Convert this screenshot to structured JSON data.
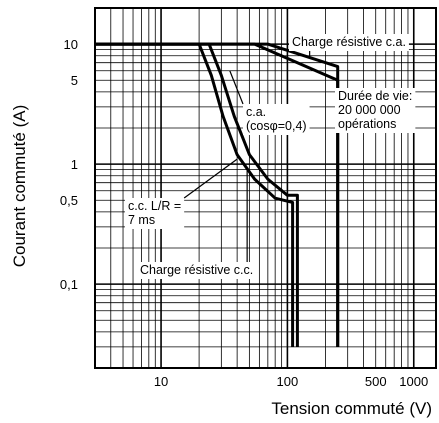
{
  "chart_data": {
    "type": "line",
    "title": "",
    "xlabel": "Tension commuté (V)",
    "ylabel": "Courant commuté (A)",
    "x_scale": "log",
    "y_scale": "log",
    "xlim": [
      3,
      1500
    ],
    "ylim": [
      0.02,
      20
    ],
    "grid": true,
    "x_ticks": [
      {
        "value": 10,
        "label": "10"
      },
      {
        "value": 100,
        "label": "100"
      },
      {
        "value": 500,
        "label": "500"
      },
      {
        "value": 1000,
        "label": "1000"
      }
    ],
    "y_ticks": [
      {
        "value": 10,
        "label": "10"
      },
      {
        "value": 5,
        "label": "5"
      },
      {
        "value": 1,
        "label": "1"
      },
      {
        "value": 0.5,
        "label": "0,5"
      },
      {
        "value": 0.1,
        "label": "0,1"
      }
    ],
    "series": [
      {
        "name": "Charge résistive c.a.",
        "points": [
          [
            3,
            10
          ],
          [
            70,
            10
          ],
          [
            250,
            6.5
          ],
          [
            250,
            0.03
          ]
        ]
      },
      {
        "name": "c.a. (cosφ=0,4)",
        "points": [
          [
            3,
            10
          ],
          [
            55,
            10
          ],
          [
            250,
            5
          ],
          [
            250,
            0.03
          ]
        ]
      },
      {
        "name": "Charge résistive c.c.",
        "points": [
          [
            3,
            10
          ],
          [
            24,
            10
          ],
          [
            30,
            5.5
          ],
          [
            38,
            2.5
          ],
          [
            50,
            1.2
          ],
          [
            70,
            0.75
          ],
          [
            100,
            0.55
          ],
          [
            120,
            0.55
          ],
          [
            120,
            0.03
          ]
        ]
      },
      {
        "name": "c.c. L/R = 7 ms",
        "points": [
          [
            3,
            10
          ],
          [
            20,
            10
          ],
          [
            25,
            5.5
          ],
          [
            31,
            2.5
          ],
          [
            40,
            1.2
          ],
          [
            55,
            0.75
          ],
          [
            80,
            0.52
          ],
          [
            110,
            0.48
          ],
          [
            110,
            0.03
          ]
        ]
      }
    ],
    "annotations": [
      {
        "text_lines": [
          "Charge résistive c.a."
        ],
        "target": [
          150,
          7.6
        ]
      },
      {
        "text_lines": [
          "Durée de vie:",
          "20 000 000",
          "opérations"
        ],
        "target": [
          250,
          4.4
        ]
      },
      {
        "text_lines": [
          "c.a.",
          "(cosφ=0,4)"
        ],
        "target": [
          35,
          6
        ]
      },
      {
        "text_lines": [
          "c.c. L/R =",
          "7 ms"
        ],
        "target": [
          40,
          1.1
        ]
      },
      {
        "text_lines": [
          "Charge résistive c.c."
        ],
        "target": [
          48,
          0.9
        ]
      }
    ]
  }
}
